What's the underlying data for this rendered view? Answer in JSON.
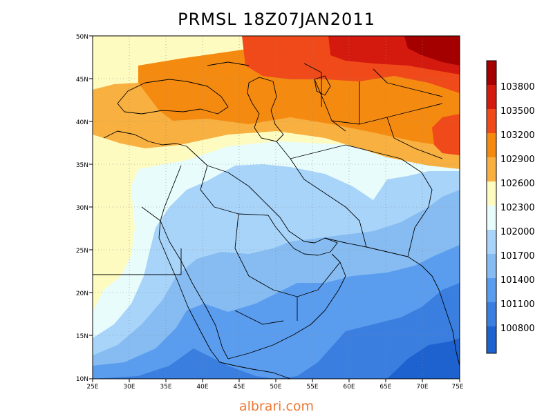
{
  "title": "PRMSL  18Z07JAN2011",
  "credit": "albrari.com",
  "map": {
    "variable": "PRMSL",
    "valid_time": "18Z07JAN2011",
    "lon_range": [
      25,
      75
    ],
    "lat_range": [
      10,
      50
    ],
    "lon_labels": [
      "25E",
      "30E",
      "35E",
      "40E",
      "45E",
      "50E",
      "55E",
      "60E",
      "65E",
      "70E",
      "75E"
    ],
    "lat_labels": [
      "50N",
      "45N",
      "40N",
      "35N",
      "30N",
      "25N",
      "20N",
      "15N",
      "10N"
    ],
    "gridlines": "dotted",
    "background_color": "#fdfbc0"
  },
  "colorbar": {
    "labels": [
      "103800",
      "103500",
      "103200",
      "102900",
      "102600",
      "102300",
      "102000",
      "101700",
      "101400",
      "101100",
      "100800"
    ],
    "colors": [
      "#a50000",
      "#d41a0f",
      "#f04a1a",
      "#f58a10",
      "#f8b040",
      "#fdfbc0",
      "#e8fcfc",
      "#a8d4fa",
      "#86bcf2",
      "#5a9cee",
      "#3a7ee0",
      "#1e62cf"
    ]
  }
}
